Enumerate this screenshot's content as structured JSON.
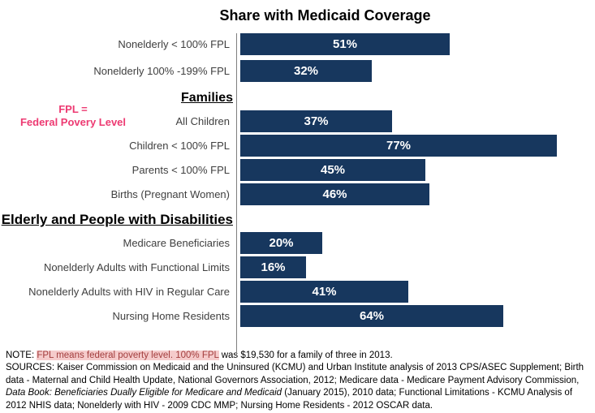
{
  "title": "Share with Medicaid Coverage",
  "annotation": {
    "line1": "FPL =",
    "line2": "Federal Povery Level",
    "color": "#ED3A72"
  },
  "chart_data": {
    "type": "bar",
    "orientation": "horizontal",
    "title": "Share with Medicaid Coverage",
    "xlabel": "",
    "ylabel": "",
    "xlim": [
      0,
      100
    ],
    "value_suffix": "%",
    "bar_color": "#17375E",
    "value_label_color": "#FFFFFF",
    "grid": false,
    "legend": false,
    "categories": [
      "Nonelderly < 100% FPL",
      "Nonelderly 100% -199% FPL",
      "All Children",
      "Children < 100% FPL",
      "Parents < 100% FPL",
      "Births (Pregnant Women)",
      "Medicare Beneficiaries",
      "Nonelderly Adults with Functional Limits",
      "Nonelderly Adults with HIV in Regular Care",
      "Nursing Home Residents"
    ],
    "values": [
      51,
      32,
      37,
      77,
      45,
      46,
      20,
      16,
      41,
      64
    ],
    "groups": [
      {
        "header": null,
        "rows": [
          {
            "label": "Nonelderly < 100% FPL",
            "value": 51
          },
          {
            "label": "Nonelderly 100% -199% FPL",
            "value": 32
          }
        ]
      },
      {
        "header": "Families",
        "rows": [
          {
            "label": "All Children",
            "value": 37
          },
          {
            "label": "Children < 100% FPL",
            "value": 77
          },
          {
            "label": "Parents < 100% FPL",
            "value": 45
          },
          {
            "label": "Births (Pregnant Women)",
            "value": 46
          }
        ]
      },
      {
        "header": "Elderly and People with Disabilities",
        "rows": [
          {
            "label": "Medicare Beneficiaries",
            "value": 20
          },
          {
            "label": "Nonelderly Adults with Functional Limits",
            "value": 16
          },
          {
            "label": "Nonelderly Adults with HIV in Regular Care",
            "value": 41
          },
          {
            "label": "Nursing Home Residents",
            "value": 64
          }
        ]
      }
    ]
  },
  "note": {
    "prefix": "NOTE: ",
    "highlight": "FPL means federal poverty level. 100% FPL",
    "suffix": " was $19,530 for a family of three in 2013.",
    "highlight_text_color": "#A33E3E",
    "highlight_bg_color": "#F5CBCB"
  },
  "sources": {
    "normal1": "SOURCES: Kaiser Commission on Medicaid and the Uninsured (KCMU) and Urban Institute analysis of 2013 CPS/ASEC Supplement; Birth data - Maternal and Child Health Update, National Governors Association, 2012; Medicare data - Medicare Payment Advisory Commission, ",
    "italic": "Data Book: Beneficiaries Dually Eligible for Medicare and Medicaid",
    "normal2": " (January 2015), 2010 data; Functional Limitations - KCMU Analysis of 2012 NHIS data; Nonelderly with HIV - 2009 CDC MMP; Nursing Home Residents - 2012 OSCAR data."
  }
}
